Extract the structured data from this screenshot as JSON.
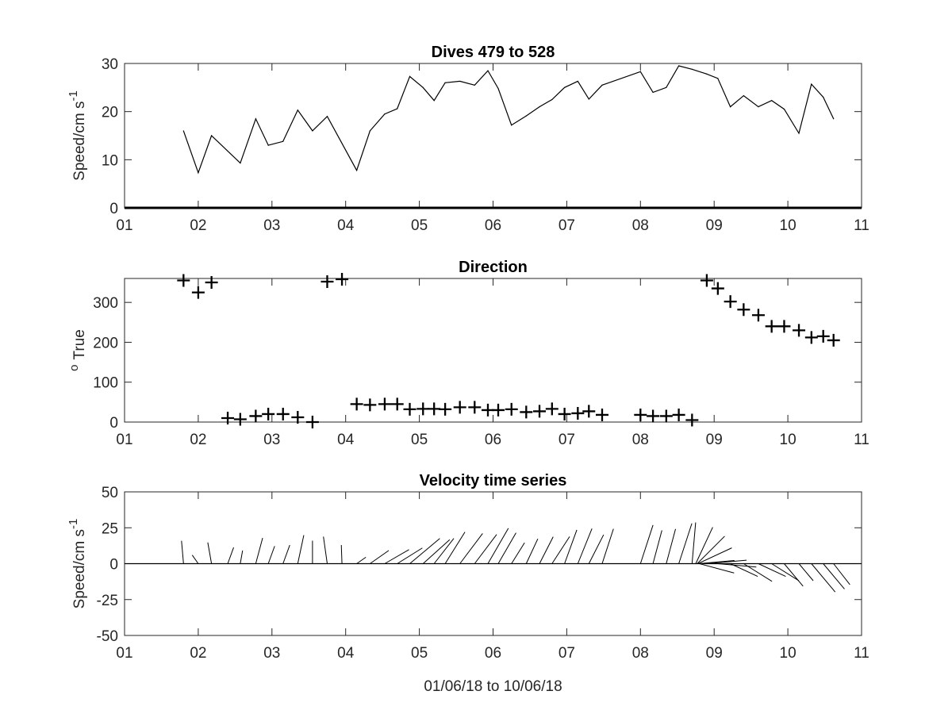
{
  "chart_data": [
    {
      "type": "line",
      "title": "Dives 479 to 528",
      "ylabel": "Speed/cm s",
      "ylabel_superscript": "-1",
      "xlim": [
        1,
        11
      ],
      "ylim": [
        0,
        30
      ],
      "x_ticks": [
        "01",
        "02",
        "03",
        "04",
        "05",
        "06",
        "07",
        "08",
        "09",
        "10",
        "11"
      ],
      "y_ticks": [
        "0",
        "10",
        "20",
        "30"
      ],
      "x": [
        1.8,
        2.0,
        2.18,
        2.57,
        2.78,
        2.95,
        3.15,
        3.35,
        3.55,
        3.75,
        4.15,
        4.33,
        4.53,
        4.7,
        4.87,
        5.05,
        5.2,
        5.35,
        5.55,
        5.75,
        5.93,
        6.07,
        6.25,
        6.45,
        6.63,
        6.8,
        6.97,
        7.15,
        7.3,
        7.48,
        8.0,
        8.17,
        8.35,
        8.52,
        8.7,
        8.9,
        9.05,
        9.22,
        9.4,
        9.6,
        9.78,
        9.95,
        10.15,
        10.32,
        10.48,
        10.62
      ],
      "y": [
        16,
        7.3,
        15,
        9.3,
        18.5,
        13,
        13.8,
        20.3,
        16,
        19,
        7.8,
        16,
        19.5,
        20.6,
        27.3,
        25,
        22.3,
        26,
        26.3,
        25.5,
        28.5,
        24.8,
        17.2,
        19.1,
        21,
        22.5,
        25,
        26.3,
        22.6,
        25.5,
        28.3,
        24,
        25,
        29.5,
        28.8,
        27.8,
        26.9,
        21,
        23.3,
        21,
        22.3,
        20.5,
        15.5,
        25.7,
        23,
        18.5
      ]
    },
    {
      "type": "scatter",
      "title": "Direction",
      "ylabel": "True",
      "ylabel_prefix": "o",
      "xlim": [
        1,
        11
      ],
      "ylim": [
        0,
        360
      ],
      "x_ticks": [
        "01",
        "02",
        "03",
        "04",
        "05",
        "06",
        "07",
        "08",
        "09",
        "10",
        "11"
      ],
      "y_ticks": [
        "0",
        "100",
        "200",
        "300"
      ],
      "marker": "+",
      "x": [
        1.8,
        2.0,
        2.18,
        2.4,
        2.57,
        2.78,
        2.95,
        3.15,
        3.35,
        3.55,
        3.75,
        3.95,
        4.15,
        4.33,
        4.53,
        4.7,
        4.87,
        5.05,
        5.2,
        5.35,
        5.55,
        5.75,
        5.93,
        6.07,
        6.25,
        6.45,
        6.63,
        6.8,
        6.97,
        7.15,
        7.3,
        7.48,
        8.0,
        8.17,
        8.35,
        8.52,
        8.7,
        8.9,
        9.05,
        9.22,
        9.4,
        9.6,
        9.78,
        9.95,
        10.15,
        10.32,
        10.48,
        10.62
      ],
      "y": [
        355,
        325,
        350,
        10,
        7,
        15,
        20,
        20,
        12,
        0,
        352,
        358,
        45,
        43,
        45,
        45,
        32,
        33,
        33,
        32,
        37,
        37,
        30,
        30,
        32,
        25,
        27,
        33,
        20,
        22,
        27,
        18,
        18,
        15,
        15,
        18,
        5,
        355,
        335,
        302,
        282,
        268,
        240,
        240,
        230,
        212,
        215,
        205
      ]
    },
    {
      "type": "quiver",
      "title": "Velocity time series",
      "ylabel": "Speed/cm s",
      "ylabel_superscript": "-1",
      "xlabel": "01/06/18 to 10/06/18",
      "xlim": [
        1,
        11
      ],
      "ylim": [
        -50,
        50
      ],
      "x_ticks": [
        "01",
        "02",
        "03",
        "04",
        "05",
        "06",
        "07",
        "08",
        "09",
        "10",
        "11"
      ],
      "y_ticks": [
        "-50",
        "-25",
        "0",
        "25",
        "50"
      ],
      "x": [
        1.8,
        2.0,
        2.18,
        2.4,
        2.57,
        2.78,
        2.95,
        3.15,
        3.35,
        3.55,
        3.75,
        3.95,
        4.15,
        4.33,
        4.53,
        4.7,
        4.87,
        5.05,
        5.2,
        5.35,
        5.55,
        5.75,
        5.93,
        6.07,
        6.25,
        6.45,
        6.63,
        6.8,
        6.97,
        7.15,
        7.3,
        7.48,
        8.0,
        8.17,
        8.35,
        8.52,
        8.7,
        8.75,
        8.77,
        8.78,
        8.79,
        8.8,
        8.9,
        9.05,
        9.22,
        9.4,
        9.6,
        9.78,
        9.95,
        10.15,
        10.32,
        10.48,
        10.62
      ],
      "speed": [
        16,
        7.3,
        15,
        12,
        9.3,
        18.5,
        13,
        13.8,
        20.3,
        16,
        19,
        13,
        7.8,
        16,
        19.5,
        20.6,
        27.3,
        25,
        22.3,
        26,
        26.3,
        25.5,
        28.5,
        24.8,
        17.2,
        19.1,
        21,
        22.5,
        25,
        26.3,
        22.6,
        25.5,
        28.3,
        24,
        25,
        29.5,
        28.8,
        28,
        27,
        26,
        25,
        25,
        27.8,
        26.9,
        21,
        23.3,
        21,
        22.3,
        20.5,
        15.5,
        25.7,
        23,
        18.5
      ],
      "direction_deg": [
        355,
        325,
        350,
        20,
        10,
        15,
        20,
        20,
        12,
        0,
        352,
        358,
        55,
        55,
        60,
        58,
        50,
        48,
        38,
        32,
        37,
        37,
        30,
        30,
        32,
        25,
        27,
        33,
        20,
        22,
        27,
        18,
        18,
        15,
        15,
        18,
        5,
        25,
        45,
        65,
        85,
        105,
        85,
        95,
        115,
        122,
        115,
        122,
        140,
        140,
        140,
        140,
        142
      ]
    }
  ]
}
